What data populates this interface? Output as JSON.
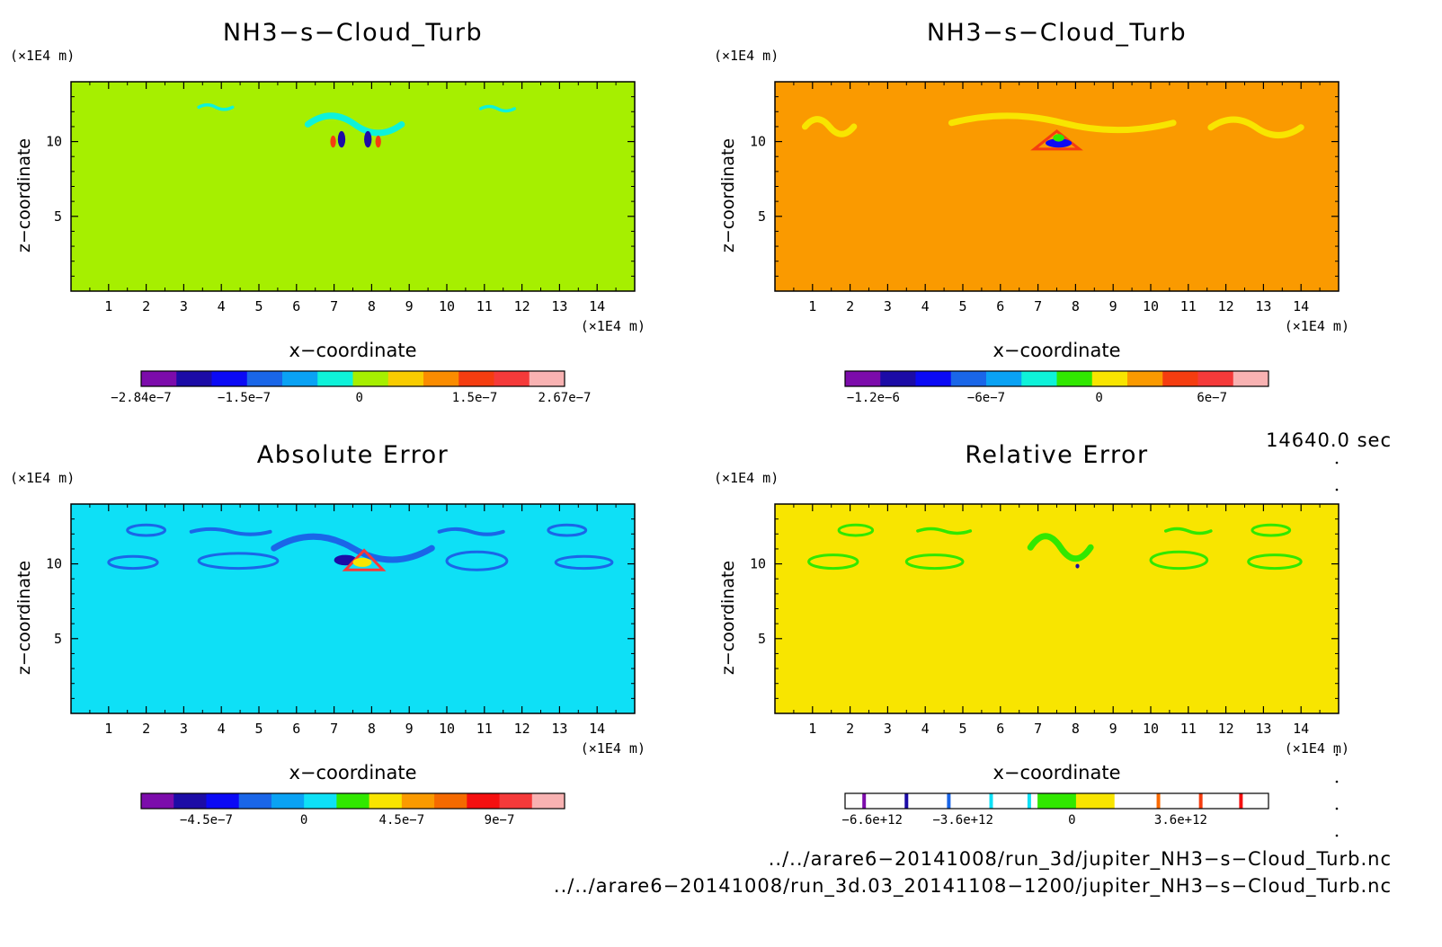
{
  "chart_data": [
    {
      "type": "heatmap",
      "title": "NH3−s−Cloud_Turb",
      "xlabel": "x−coordinate",
      "ylabel": "z−coordinate",
      "x_unit": "(×1E4 m)",
      "z_unit": "(×1E4 m)",
      "xlim": [
        0,
        15
      ],
      "zlim": [
        0,
        14
      ],
      "x_ticks": [
        "1",
        "2",
        "3",
        "4",
        "5",
        "6",
        "7",
        "8",
        "9",
        "10",
        "11",
        "12",
        "13",
        "14"
      ],
      "z_ticks": [
        "5",
        "10"
      ],
      "background_color": "#a6ef00",
      "colorbar": {
        "colors": [
          "#7c0cab",
          "#1c0ca6",
          "#0b0af5",
          "#1a66e8",
          "#0aa2f4",
          "#0ef2d9",
          "#a6ef00",
          "#f8cc00",
          "#fa8c00",
          "#f53d10",
          "#f53a3a",
          "#f8b2b2"
        ],
        "labels": [
          "−2.84e−7",
          "−1.5e−7",
          "0",
          "1.5e−7",
          "2.67e−7"
        ],
        "values": [
          -2.84e-07,
          -1.5e-07,
          0,
          1.5e-07,
          2.67e-07
        ],
        "range": [
          -2.84e-07,
          2.67e-07
        ]
      },
      "features": [
        {
          "color": "#0ef2d9",
          "shape": "wispy",
          "x": [
            6.3,
            8.8
          ],
          "z": [
            10.0,
            12.3
          ]
        },
        {
          "color": "#0ef2d9",
          "shape": "wispy",
          "x": [
            3.4,
            4.3
          ],
          "z": [
            12.0,
            12.6
          ]
        },
        {
          "color": "#0ef2d9",
          "shape": "wispy",
          "x": [
            10.9,
            11.8
          ],
          "z": [
            11.9,
            12.5
          ]
        },
        {
          "color": "#1c0ca6",
          "shape": "blob",
          "x": [
            7.1,
            7.3
          ],
          "z": [
            9.6,
            10.7
          ]
        },
        {
          "color": "#1c0ca6",
          "shape": "blob",
          "x": [
            7.8,
            8.0
          ],
          "z": [
            9.6,
            10.7
          ]
        },
        {
          "color": "#f53d10",
          "shape": "blob",
          "x": [
            6.9,
            7.05
          ],
          "z": [
            9.6,
            10.4
          ]
        },
        {
          "color": "#f53d10",
          "shape": "blob",
          "x": [
            8.1,
            8.25
          ],
          "z": [
            9.6,
            10.4
          ]
        }
      ]
    },
    {
      "type": "heatmap",
      "title": "NH3−s−Cloud_Turb",
      "xlabel": "x−coordinate",
      "ylabel": "z−coordinate",
      "x_unit": "(×1E4 m)",
      "z_unit": "(×1E4 m)",
      "xlim": [
        0,
        15
      ],
      "zlim": [
        0,
        14
      ],
      "x_ticks": [
        "1",
        "2",
        "3",
        "4",
        "5",
        "6",
        "7",
        "8",
        "9",
        "10",
        "11",
        "12",
        "13",
        "14"
      ],
      "z_ticks": [
        "5",
        "10"
      ],
      "background_color": "#fa9a00",
      "colorbar": {
        "colors": [
          "#7c0cab",
          "#1c0ca6",
          "#0b0af5",
          "#1a66e8",
          "#0aa2f4",
          "#0ef2d9",
          "#31e800",
          "#f8e500",
          "#fa9a00",
          "#f53d10",
          "#f53a3a",
          "#f8b2b2"
        ],
        "labels": [
          "−1.2e−6",
          "−6e−7",
          "0",
          "6e−7"
        ],
        "values": [
          -1.2e-06,
          -6e-07,
          0,
          6e-07
        ],
        "range": [
          -1.35e-06,
          9e-07
        ]
      },
      "features": [
        {
          "color": "#f8e500",
          "shape": "wispy",
          "x": [
            4.7,
            10.6
          ],
          "z": [
            10.3,
            12.2
          ]
        },
        {
          "color": "#f8e500",
          "shape": "wispy",
          "x": [
            0.8,
            2.1
          ],
          "z": [
            10.0,
            12.0
          ]
        },
        {
          "color": "#f8e500",
          "shape": "wispy",
          "x": [
            11.6,
            14.0
          ],
          "z": [
            9.9,
            12.0
          ]
        },
        {
          "color": "#f53d10",
          "shape": "triangle",
          "x": [
            6.9,
            8.1
          ],
          "z": [
            9.5,
            10.7
          ]
        },
        {
          "color": "#0b0af5",
          "shape": "blob",
          "x": [
            7.2,
            7.9
          ],
          "z": [
            9.6,
            10.2
          ]
        },
        {
          "color": "#31e800",
          "shape": "blob",
          "x": [
            7.4,
            7.7
          ],
          "z": [
            10.0,
            10.5
          ]
        }
      ]
    },
    {
      "type": "heatmap",
      "title": "Absolute Error",
      "xlabel": "x−coordinate",
      "ylabel": "z−coordinate",
      "x_unit": "(×1E4 m)",
      "z_unit": "(×1E4 m)",
      "xlim": [
        0,
        15
      ],
      "zlim": [
        0,
        14
      ],
      "x_ticks": [
        "1",
        "2",
        "3",
        "4",
        "5",
        "6",
        "7",
        "8",
        "9",
        "10",
        "11",
        "12",
        "13",
        "14"
      ],
      "z_ticks": [
        "5",
        "10"
      ],
      "background_color": "#0ee0f6",
      "colorbar": {
        "colors": [
          "#7c0cab",
          "#1c0ca6",
          "#0b0af5",
          "#1a66e8",
          "#0aa2f4",
          "#0ee0f6",
          "#31e800",
          "#f8e500",
          "#fa9a00",
          "#f56a00",
          "#f51010",
          "#f53a3a",
          "#f8b2b2"
        ],
        "labels": [
          "−4.5e−7",
          "0",
          "4.5e−7",
          "9e−7"
        ],
        "values": [
          -4.5e-07,
          0,
          4.5e-07,
          9e-07
        ],
        "range": [
          -7.5e-07,
          1.2e-06
        ]
      },
      "features": [
        {
          "color": "#1a66e8",
          "shape": "ring",
          "x": [
            1.0,
            2.3
          ],
          "z": [
            9.7,
            10.5
          ]
        },
        {
          "color": "#1a66e8",
          "shape": "ring",
          "x": [
            1.5,
            2.5
          ],
          "z": [
            11.9,
            12.6
          ]
        },
        {
          "color": "#1a66e8",
          "shape": "ring",
          "x": [
            3.4,
            5.5
          ],
          "z": [
            9.7,
            10.7
          ]
        },
        {
          "color": "#1a66e8",
          "shape": "wispy",
          "x": [
            3.2,
            5.3
          ],
          "z": [
            11.8,
            12.5
          ]
        },
        {
          "color": "#1a66e8",
          "shape": "wispy",
          "x": [
            5.4,
            9.6
          ],
          "z": [
            9.5,
            12.6
          ]
        },
        {
          "color": "#1a66e8",
          "shape": "ring",
          "x": [
            10.0,
            11.6
          ],
          "z": [
            9.6,
            10.8
          ]
        },
        {
          "color": "#1a66e8",
          "shape": "wispy",
          "x": [
            9.8,
            11.5
          ],
          "z": [
            11.8,
            12.5
          ]
        },
        {
          "color": "#1a66e8",
          "shape": "ring",
          "x": [
            12.9,
            14.4
          ],
          "z": [
            9.7,
            10.5
          ]
        },
        {
          "color": "#1a66e8",
          "shape": "ring",
          "x": [
            12.7,
            13.7
          ],
          "z": [
            11.9,
            12.6
          ]
        },
        {
          "color": "#1c0ca6",
          "shape": "blob",
          "x": [
            7.0,
            7.6
          ],
          "z": [
            9.9,
            10.6
          ]
        },
        {
          "color": "#f53a3a",
          "shape": "triangle",
          "x": [
            7.3,
            8.3
          ],
          "z": [
            9.6,
            10.9
          ]
        },
        {
          "color": "#f8e500",
          "shape": "blob",
          "x": [
            7.5,
            8.0
          ],
          "z": [
            9.8,
            10.4
          ]
        }
      ]
    },
    {
      "type": "heatmap",
      "title": "Relative Error",
      "xlabel": "x−coordinate",
      "ylabel": "z−coordinate",
      "x_unit": "(×1E4 m)",
      "z_unit": "(×1E4 m)",
      "xlim": [
        0,
        15
      ],
      "zlim": [
        0,
        14
      ],
      "x_ticks": [
        "1",
        "2",
        "3",
        "4",
        "5",
        "6",
        "7",
        "8",
        "9",
        "10",
        "11",
        "12",
        "13",
        "14"
      ],
      "z_ticks": [
        "5",
        "10"
      ],
      "background_color": "#f8e500",
      "colorbar": {
        "colors": [
          "#ffffff",
          "#ffffff",
          "#ffffff",
          "#ffffff",
          "#ffffff",
          "#31e800",
          "#f8e500",
          "#ffffff",
          "#ffffff",
          "#ffffff",
          "#ffffff"
        ],
        "line_marks": [
          {
            "color": "#7c0cab",
            "position": 0.045
          },
          {
            "color": "#1c0ca6",
            "position": 0.145
          },
          {
            "color": "#1a66e8",
            "position": 0.245
          },
          {
            "color": "#0ee0f6",
            "position": 0.345
          },
          {
            "color": "#0ee0f6",
            "position": 0.435
          },
          {
            "color": "#fa6a00",
            "position": 0.74
          },
          {
            "color": "#f53d10",
            "position": 0.84
          },
          {
            "color": "#f51010",
            "position": 0.935
          }
        ],
        "labels": [
          "−6.6e+12",
          "−3.6e+12",
          "0",
          "3.6e+12"
        ],
        "values": [
          -6600000000000.0,
          -3600000000000.0,
          0,
          3600000000000.0
        ],
        "range": [
          -7500000000000.0,
          6500000000000.0
        ]
      },
      "features": [
        {
          "color": "#31e800",
          "shape": "ring",
          "x": [
            0.9,
            2.2
          ],
          "z": [
            9.7,
            10.6
          ]
        },
        {
          "color": "#31e800",
          "shape": "ring",
          "x": [
            1.7,
            2.6
          ],
          "z": [
            11.9,
            12.6
          ]
        },
        {
          "color": "#31e800",
          "shape": "ring",
          "x": [
            3.5,
            5.0
          ],
          "z": [
            9.7,
            10.6
          ]
        },
        {
          "color": "#31e800",
          "shape": "wispy",
          "x": [
            3.8,
            5.2
          ],
          "z": [
            11.9,
            12.5
          ]
        },
        {
          "color": "#31e800",
          "shape": "wispy",
          "x": [
            6.8,
            8.4
          ],
          "z": [
            9.6,
            12.6
          ]
        },
        {
          "color": "#31e800",
          "shape": "ring",
          "x": [
            10.0,
            11.5
          ],
          "z": [
            9.7,
            10.8
          ]
        },
        {
          "color": "#31e800",
          "shape": "wispy",
          "x": [
            10.4,
            11.6
          ],
          "z": [
            11.9,
            12.5
          ]
        },
        {
          "color": "#31e800",
          "shape": "ring",
          "x": [
            12.6,
            14.0
          ],
          "z": [
            9.7,
            10.6
          ]
        },
        {
          "color": "#31e800",
          "shape": "ring",
          "x": [
            12.7,
            13.7
          ],
          "z": [
            11.9,
            12.6
          ]
        },
        {
          "color": "#1c0ca6",
          "shape": "blob",
          "x": [
            8.0,
            8.1
          ],
          "z": [
            9.7,
            10.0
          ]
        }
      ]
    }
  ],
  "timestamp": "14640.0 sec",
  "files": [
    "../../arare6−20141008/run_3d/jupiter_NH3−s−Cloud_Turb.nc",
    "../../arare6−20141008/run_3d.03_20141108−1200/jupiter_NH3−s−Cloud_Turb.nc"
  ]
}
